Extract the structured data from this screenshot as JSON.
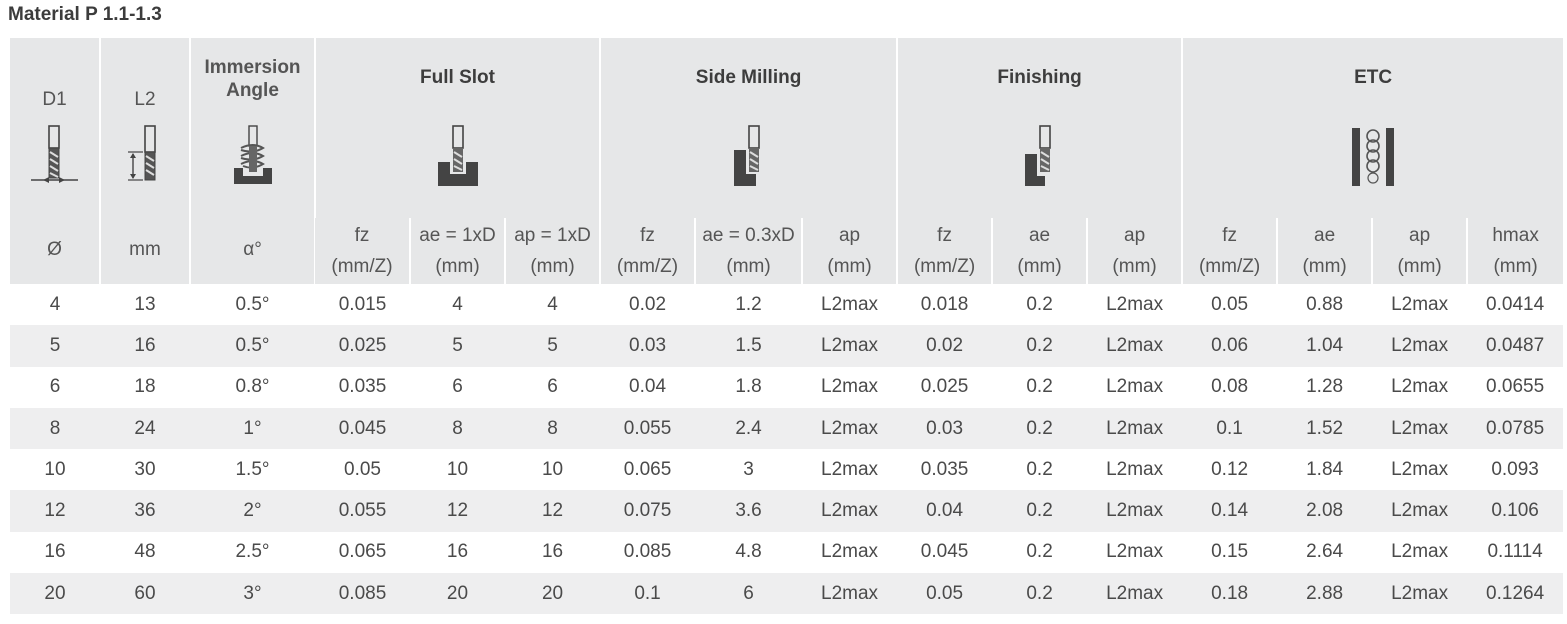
{
  "title": "Material P 1.1-1.3",
  "headers": {
    "d1": {
      "label": "D1",
      "unit": "Ø"
    },
    "l2": {
      "label": "L2",
      "unit": "mm"
    },
    "angle": {
      "line1": "Immersion",
      "line2": "Angle",
      "unit": "α°"
    },
    "groups": [
      "Full Slot",
      "Side Milling",
      "Finishing",
      "ETC"
    ],
    "sub": [
      {
        "line1": "fz",
        "line2": "(mm/Z)"
      },
      {
        "line1": "ae = 1xD",
        "line2": "(mm)"
      },
      {
        "line1": "ap = 1xD",
        "line2": "(mm)"
      },
      {
        "line1": "fz",
        "line2": "(mm/Z)"
      },
      {
        "line1": "ae = 0.3xD",
        "line2": "(mm)"
      },
      {
        "line1": "ap",
        "line2": "(mm)"
      },
      {
        "line1": "fz",
        "line2": "(mm/Z)"
      },
      {
        "line1": "ae",
        "line2": "(mm)"
      },
      {
        "line1": "ap",
        "line2": "(mm)"
      },
      {
        "line1": "fz",
        "line2": "(mm/Z)"
      },
      {
        "line1": "ae",
        "line2": "(mm)"
      },
      {
        "line1": "ap",
        "line2": "(mm)"
      },
      {
        "line1": "hmax",
        "line2": "(mm)"
      }
    ]
  },
  "icons": [
    "end-mill-diameter-icon",
    "end-mill-length-icon",
    "ramping-icon",
    "full-slot-icon",
    "side-milling-icon",
    "finishing-icon",
    "helical-interpolation-icon"
  ],
  "rows": [
    [
      "4",
      "13",
      "0.5°",
      "0.015",
      "4",
      "4",
      "0.02",
      "1.2",
      "L2max",
      "0.018",
      "0.2",
      "L2max",
      "0.05",
      "0.88",
      "L2max",
      "0.0414"
    ],
    [
      "5",
      "16",
      "0.5°",
      "0.025",
      "5",
      "5",
      "0.03",
      "1.5",
      "L2max",
      "0.02",
      "0.2",
      "L2max",
      "0.06",
      "1.04",
      "L2max",
      "0.0487"
    ],
    [
      "6",
      "18",
      "0.8°",
      "0.035",
      "6",
      "6",
      "0.04",
      "1.8",
      "L2max",
      "0.025",
      "0.2",
      "L2max",
      "0.08",
      "1.28",
      "L2max",
      "0.0655"
    ],
    [
      "8",
      "24",
      "1°",
      "0.045",
      "8",
      "8",
      "0.055",
      "2.4",
      "L2max",
      "0.03",
      "0.2",
      "L2max",
      "0.1",
      "1.52",
      "L2max",
      "0.0785"
    ],
    [
      "10",
      "30",
      "1.5°",
      "0.05",
      "10",
      "10",
      "0.065",
      "3",
      "L2max",
      "0.035",
      "0.2",
      "L2max",
      "0.12",
      "1.84",
      "L2max",
      "0.093"
    ],
    [
      "12",
      "36",
      "2°",
      "0.055",
      "12",
      "12",
      "0.075",
      "3.6",
      "L2max",
      "0.04",
      "0.2",
      "L2max",
      "0.14",
      "2.08",
      "L2max",
      "0.106"
    ],
    [
      "16",
      "48",
      "2.5°",
      "0.065",
      "16",
      "16",
      "0.085",
      "4.8",
      "L2max",
      "0.045",
      "0.2",
      "L2max",
      "0.15",
      "2.64",
      "L2max",
      "0.1114"
    ],
    [
      "20",
      "60",
      "3°",
      "0.085",
      "20",
      "20",
      "0.1",
      "6",
      "L2max",
      "0.05",
      "0.2",
      "L2max",
      "0.18",
      "2.88",
      "L2max",
      "0.1264"
    ]
  ]
}
